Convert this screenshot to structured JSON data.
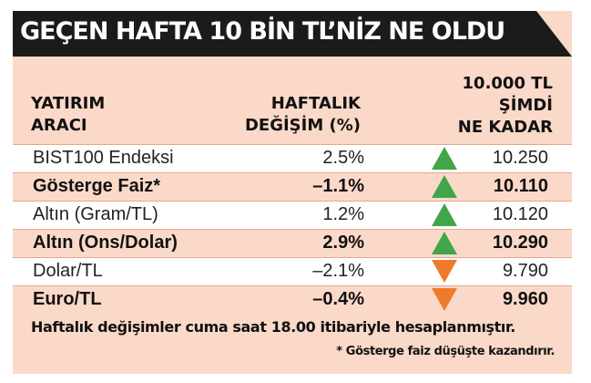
{
  "title": "GEÇEN HAFTA 10 BİN TL’NİZ NE OLDU",
  "headers": {
    "col1": [
      "YATIRIM",
      "ARACI"
    ],
    "col2": [
      "HAFTALIK",
      "DEĞİŞİM (%)"
    ],
    "col3": [
      "10.000 TL",
      "ŞİMDİ",
      "NE KADAR"
    ]
  },
  "rows": [
    {
      "name": "BIST100 Endeksi",
      "change": "2.5%",
      "value": "10.250",
      "direction": "up",
      "bold": false
    },
    {
      "name": "Gösterge Faiz*",
      "change": "–1.1%",
      "value": "10.110",
      "direction": "up",
      "bold": true
    },
    {
      "name": "Altın (Gram/TL)",
      "change": "1.2%",
      "value": "10.120",
      "direction": "up",
      "bold": false
    },
    {
      "name": "Altın (Ons/Dolar)",
      "change": "2.9%",
      "value": "10.290",
      "direction": "up",
      "bold": true
    },
    {
      "name": "Dolar/TL",
      "change": "–2.1%",
      "value": "9.790",
      "direction": "down",
      "bold": false
    },
    {
      "name": "Euro/TL",
      "change": "–0.4%",
      "value": "9.960",
      "direction": "down",
      "bold": true
    }
  ],
  "footnotes": {
    "main": "Haftalık değişimler cuma saat 18.00 itibariyle hesaplanmıştır.",
    "asterisk": "* Gösterge faiz düşüşte kazandırır."
  },
  "colors": {
    "banner": "#1b1b1b",
    "background": "#fbd9c9",
    "up_arrow": "#41a64a",
    "down_arrow": "#f07a2c"
  },
  "icons": {
    "up": "up-arrow-icon",
    "down": "down-arrow-icon"
  }
}
